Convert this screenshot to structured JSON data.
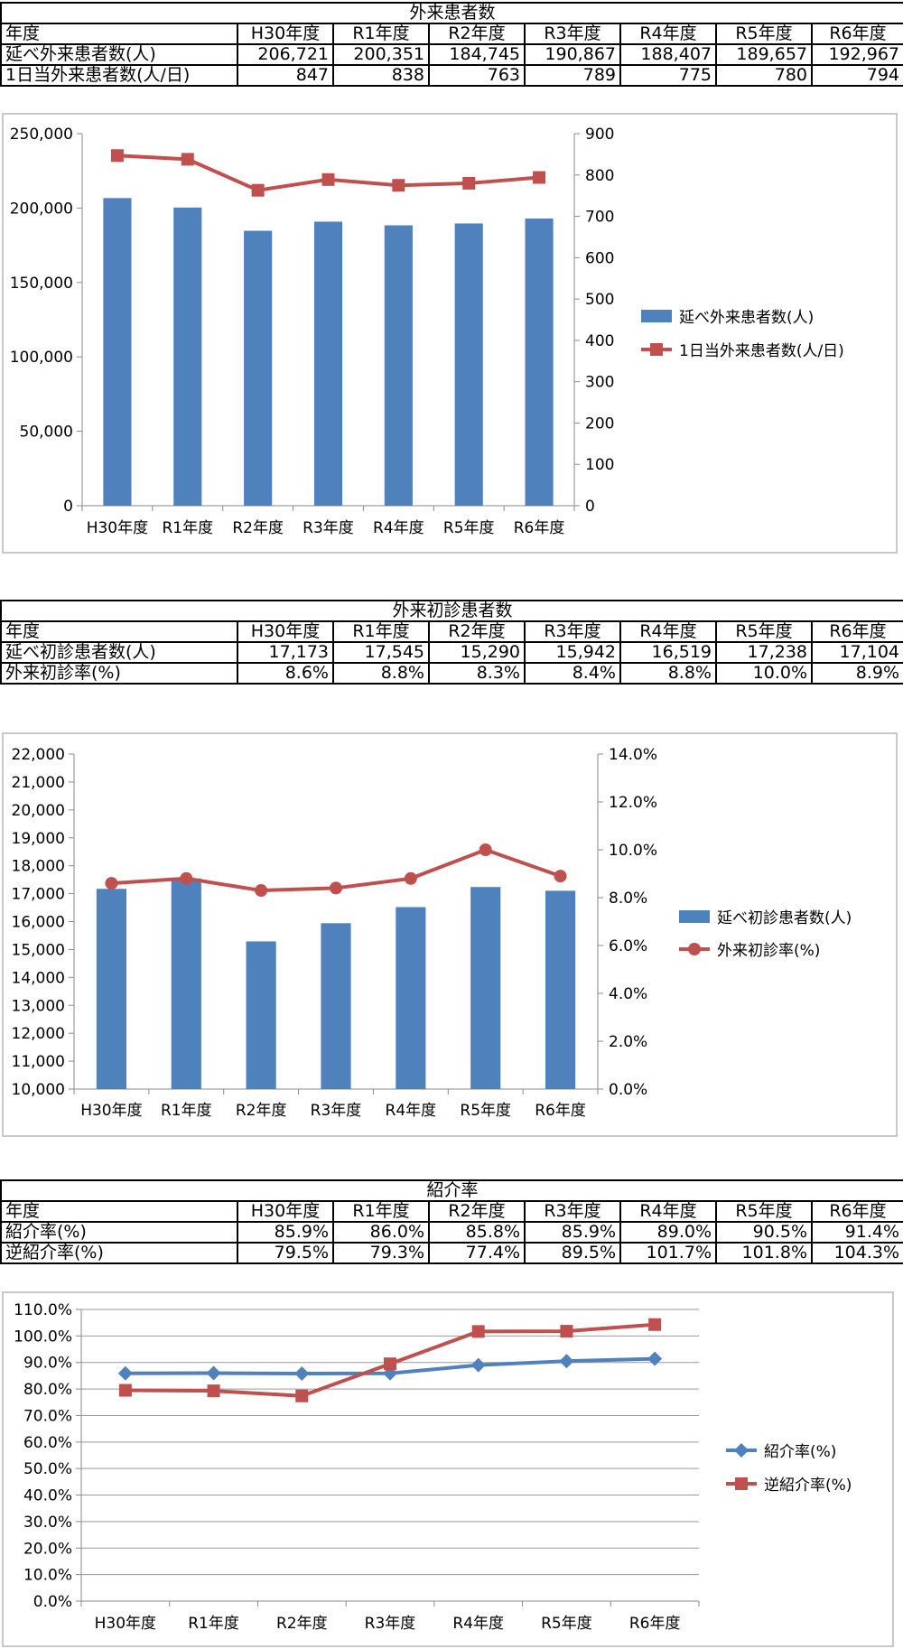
{
  "tables": [
    {
      "title": "外来患者数",
      "header": [
        "年度",
        "H30年度",
        "R1年度",
        "R2年度",
        "R3年度",
        "R4年度",
        "R5年度",
        "R6年度"
      ],
      "rows": [
        [
          "延べ外来患者数(人)",
          "206,721",
          "200,351",
          "184,745",
          "190,867",
          "188,407",
          "189,657",
          "192,967"
        ],
        [
          "1日当外来患者数(人/日)",
          "847",
          "838",
          "763",
          "789",
          "775",
          "780",
          "794"
        ]
      ]
    },
    {
      "title": "外来初診患者数",
      "header": [
        "年度",
        "H30年度",
        "R1年度",
        "R2年度",
        "R3年度",
        "R4年度",
        "R5年度",
        "R6年度"
      ],
      "rows": [
        [
          "延べ初診患者数(人)",
          "17,173",
          "17,545",
          "15,290",
          "15,942",
          "16,519",
          "17,238",
          "17,104"
        ],
        [
          "外来初診率(%)",
          "8.6%",
          "8.8%",
          "8.3%",
          "8.4%",
          "8.8%",
          "10.0%",
          "8.9%"
        ]
      ]
    },
    {
      "title": "紹介率",
      "header": [
        "年度",
        "H30年度",
        "R1年度",
        "R2年度",
        "R3年度",
        "R4年度",
        "R5年度",
        "R6年度"
      ],
      "rows": [
        [
          "紹介率(%)",
          "85.9%",
          "86.0%",
          "85.8%",
          "85.9%",
          "89.0%",
          "90.5%",
          "91.4%"
        ],
        [
          "逆紹介率(%)",
          "79.5%",
          "79.3%",
          "77.4%",
          "89.5%",
          "101.7%",
          "101.8%",
          "104.3%"
        ]
      ]
    }
  ],
  "chart_data": [
    {
      "type": "bar",
      "categories": [
        "H30年度",
        "R1年度",
        "R2年度",
        "R3年度",
        "R4年度",
        "R5年度",
        "R6年度"
      ],
      "series": [
        {
          "name": "延べ外来患者数(人)",
          "type": "bar",
          "axis": "left",
          "color": "#4f81bd",
          "values": [
            206721,
            200351,
            184745,
            190867,
            188407,
            189657,
            192967
          ]
        },
        {
          "name": "1日当外来患者数(人/日)",
          "type": "line",
          "axis": "right",
          "color": "#c0504d",
          "marker": "square",
          "values": [
            847,
            838,
            763,
            789,
            775,
            780,
            794
          ]
        }
      ],
      "y_left": {
        "min": 0,
        "max": 250000,
        "ticks": [
          "0",
          "50,000",
          "100,000",
          "150,000",
          "200,000",
          "250,000"
        ]
      },
      "y_right": {
        "min": 0,
        "max": 900,
        "ticks": [
          "0",
          "100",
          "200",
          "300",
          "400",
          "500",
          "600",
          "700",
          "800",
          "900"
        ]
      },
      "legend_position": "right"
    },
    {
      "type": "bar",
      "categories": [
        "H30年度",
        "R1年度",
        "R2年度",
        "R3年度",
        "R4年度",
        "R5年度",
        "R6年度"
      ],
      "series": [
        {
          "name": "延べ初診患者数(人)",
          "type": "bar",
          "axis": "left",
          "color": "#4f81bd",
          "values": [
            17173,
            17545,
            15290,
            15942,
            16519,
            17238,
            17104
          ]
        },
        {
          "name": "外来初診率(%)",
          "type": "line",
          "axis": "right",
          "color": "#c0504d",
          "marker": "circle",
          "values": [
            8.6,
            8.8,
            8.3,
            8.4,
            8.8,
            10.0,
            8.9
          ]
        }
      ],
      "y_left": {
        "min": 10000,
        "max": 22000,
        "ticks": [
          "10,000",
          "11,000",
          "12,000",
          "13,000",
          "14,000",
          "15,000",
          "16,000",
          "17,000",
          "18,000",
          "19,000",
          "20,000",
          "21,000",
          "22,000"
        ]
      },
      "y_right": {
        "min": 0,
        "max": 14,
        "ticks": [
          "0.0%",
          "2.0%",
          "4.0%",
          "6.0%",
          "8.0%",
          "10.0%",
          "12.0%",
          "14.0%"
        ]
      },
      "legend_position": "right"
    },
    {
      "type": "line",
      "categories": [
        "H30年度",
        "R1年度",
        "R2年度",
        "R3年度",
        "R4年度",
        "R5年度",
        "R6年度"
      ],
      "series": [
        {
          "name": "紹介率(%)",
          "color": "#4f81bd",
          "marker": "diamond",
          "values": [
            85.9,
            86.0,
            85.8,
            85.9,
            89.0,
            90.5,
            91.4
          ]
        },
        {
          "name": "逆紹介率(%)",
          "color": "#c0504d",
          "marker": "square",
          "values": [
            79.5,
            79.3,
            77.4,
            89.5,
            101.7,
            101.8,
            104.3
          ]
        }
      ],
      "y_left": {
        "min": 0,
        "max": 110,
        "ticks": [
          "0.0%",
          "10.0%",
          "20.0%",
          "30.0%",
          "40.0%",
          "50.0%",
          "60.0%",
          "70.0%",
          "80.0%",
          "90.0%",
          "100.0%",
          "110.0%"
        ]
      },
      "grid": true,
      "legend_position": "right"
    }
  ]
}
